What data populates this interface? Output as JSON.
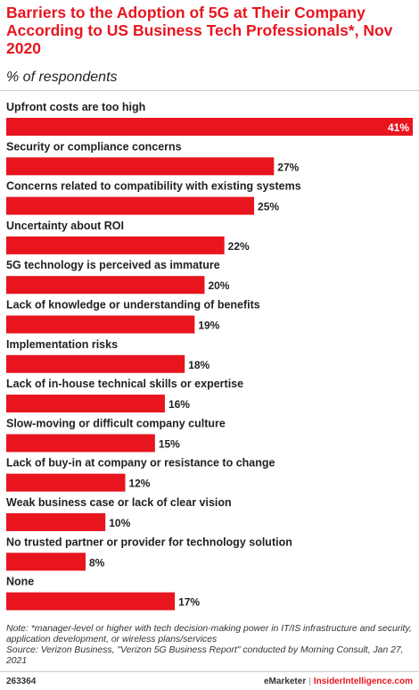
{
  "header": {
    "title": "Barriers to the Adoption of 5G at Their Company According to US Business Tech Professionals*, Nov 2020",
    "subtitle": "% of respondents"
  },
  "chart_data": {
    "type": "bar",
    "orientation": "horizontal",
    "categories": [
      "Upfront costs are too high",
      "Security or compliance concerns",
      "Concerns related to compatibility with existing systems",
      "Uncertainty about ROI",
      "5G technology is perceived as immature",
      "Lack of knowledge or understanding of benefits",
      "Implementation risks",
      "Lack of in-house technical skills or expertise",
      "Slow-moving or difficult company culture",
      "Lack of buy-in at company or resistance to change",
      "Weak business case or lack of clear vision",
      "No trusted partner or provider for technology solution",
      "None"
    ],
    "values": [
      41,
      27,
      25,
      22,
      20,
      19,
      18,
      16,
      15,
      12,
      10,
      8,
      17
    ],
    "value_labels": [
      "41%",
      "27%",
      "25%",
      "22%",
      "20%",
      "19%",
      "18%",
      "16%",
      "15%",
      "12%",
      "10%",
      "8%",
      "17%"
    ],
    "xlim": [
      0,
      41
    ],
    "bar_color": "#e8151f",
    "grid": false,
    "legend": "none"
  },
  "footer": {
    "note": "Note: *manager-level or higher with tech decision-making power in IT/IS infrastructure and security, application development, or wireless plans/services",
    "source": "Source: Verizon Business, \"Verizon 5G Business Report\" conducted by Morning Consult, Jan 27, 2021",
    "chart_id": "263364",
    "brand": "eMarketer",
    "separator": "|",
    "brand_site": "InsiderIntelligence.com"
  }
}
